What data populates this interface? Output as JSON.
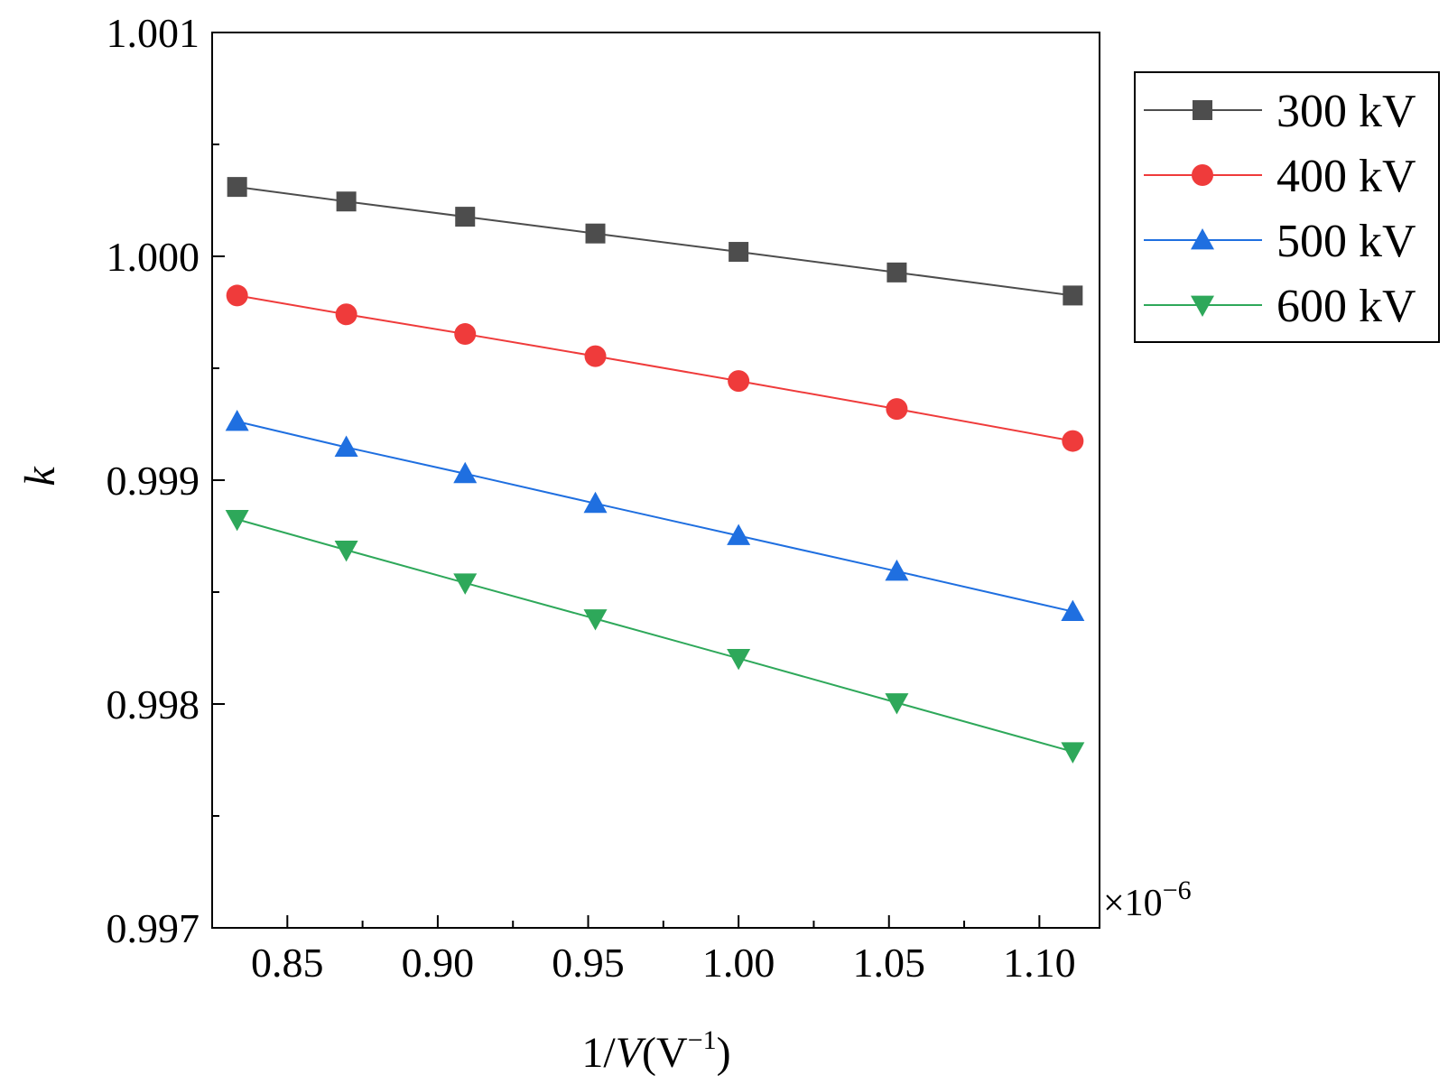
{
  "chart_data": {
    "type": "line",
    "ylabel": "k",
    "xlabel_main": "1/",
    "xlabel_var": "V",
    "xlabel_unit_open": "(V",
    "xlabel_unit_exp": "−1",
    "xlabel_unit_close": ")",
    "x_multiplier_prefix": "×10",
    "x_multiplier_exp": "−6",
    "xlim": [
      0.825,
      1.12
    ],
    "ylim": [
      0.997,
      1.001
    ],
    "x_ticks": [
      "0.85",
      "0.90",
      "0.95",
      "1.00",
      "1.05",
      "1.10"
    ],
    "y_ticks": [
      "0.997",
      "0.998",
      "0.999",
      "1.000",
      "1.001"
    ],
    "x": [
      0.8333,
      0.8696,
      0.9091,
      0.9524,
      1.0,
      1.0526,
      1.1111
    ],
    "series": [
      {
        "name": "300 kV",
        "color": "#4d4d4d",
        "marker": "square",
        "values": [
          1.00031,
          1.000245,
          1.000177,
          1.000102,
          1.00002,
          0.999928,
          0.999825
        ]
      },
      {
        "name": "400 kV",
        "color": "#ef3b3b",
        "marker": "circle",
        "values": [
          0.999825,
          0.999741,
          0.999653,
          0.999554,
          0.999443,
          0.999318,
          0.999175
        ]
      },
      {
        "name": "500 kV",
        "color": "#1f6fe0",
        "marker": "triangle-up",
        "values": [
          0.999262,
          0.999147,
          0.999029,
          0.998896,
          0.998752,
          0.998593,
          0.998413
        ]
      },
      {
        "name": "600 kV",
        "color": "#2ea85a",
        "marker": "triangle-down",
        "values": [
          0.998825,
          0.998688,
          0.998541,
          0.998381,
          0.998204,
          0.998006,
          0.997787
        ]
      }
    ]
  }
}
